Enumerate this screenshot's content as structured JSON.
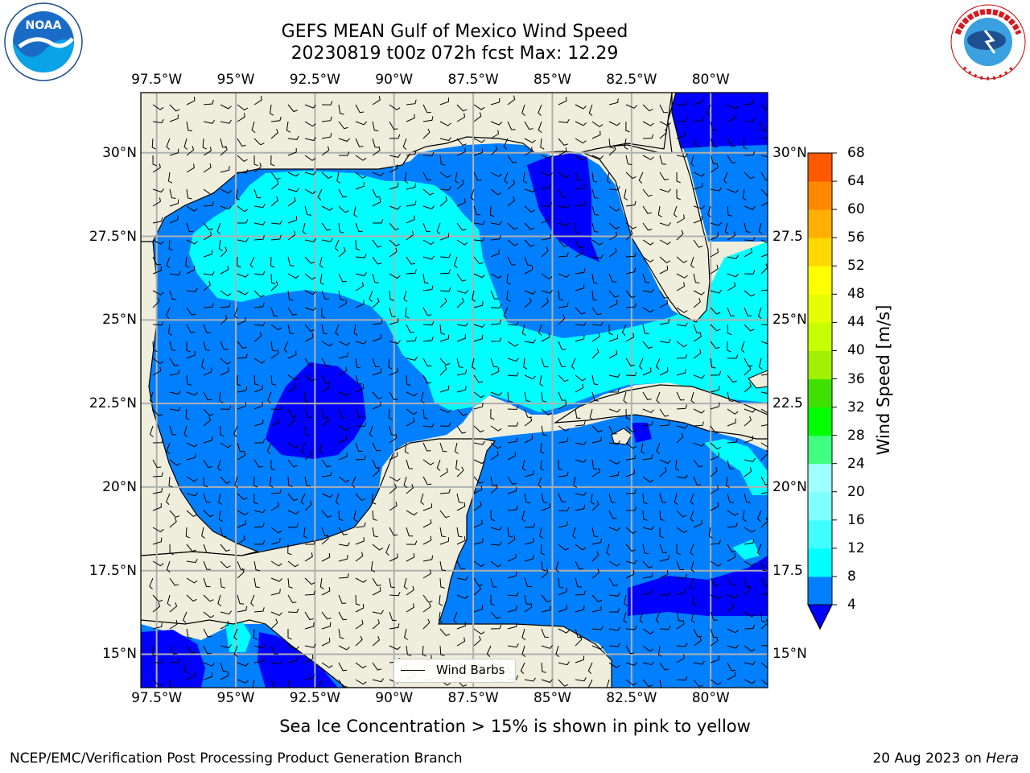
{
  "title": {
    "line1": "GEFS MEAN Gulf of Mexico Wind Speed",
    "line2": "20230819 t00z 072h fcst   Max: 12.29"
  },
  "map": {
    "lon_labels": [
      "97.5°W",
      "95°W",
      "92.5°W",
      "90°W",
      "87.5°W",
      "85°W",
      "82.5°W",
      "80°W"
    ],
    "lon_values": [
      -97.5,
      -95,
      -92.5,
      -90,
      -87.5,
      -85,
      -82.5,
      -80
    ],
    "lat_labels_left": [
      "30°N",
      "27.5°N",
      "25°N",
      "22.5°N",
      "20°N",
      "17.5°N",
      "15°N"
    ],
    "lat_labels_right": [
      "30°N",
      "27.5",
      "25°N",
      "22.5",
      "20°N",
      "17.5",
      "15°N"
    ],
    "lat_values": [
      30,
      27.5,
      25,
      22.5,
      20,
      17.5,
      15
    ],
    "extent": {
      "lon_min": -98,
      "lon_max": -78.2,
      "lat_min": 14.0,
      "lat_max": 31.8
    },
    "colors": {
      "land": "#efeedc",
      "ocean_4_8": "#0080ff",
      "ocean_8_12": "#00ffff",
      "ocean_below_4": "#0000ff",
      "grid": "#b0b0b0",
      "coast": "#000000"
    }
  },
  "legend": {
    "label": "Wind Barbs"
  },
  "colorbar": {
    "title": "Wind Speed [m/s]",
    "levels": [
      "4",
      "8",
      "12",
      "16",
      "20",
      "24",
      "28",
      "32",
      "36",
      "40",
      "44",
      "48",
      "52",
      "56",
      "60",
      "64",
      "68"
    ],
    "colors": [
      "#0080ff",
      "#00ffff",
      "#40ffff",
      "#80ffff",
      "#a0ffff",
      "#40ff80",
      "#00ff00",
      "#40e000",
      "#a0f000",
      "#c8ff00",
      "#e6ff00",
      "#ffff00",
      "#ffd800",
      "#ffb000",
      "#ff8800",
      "#ff5a00",
      "#ff2a00",
      "#ff0000"
    ],
    "under_color": "#0000ff"
  },
  "note": "Sea Ice Concentration > 15% is shown in pink to yellow",
  "footer": {
    "left": "NCEP/EMC/Verification Post Processing Product Generation Branch",
    "right_date": "20 Aug 2023 on ",
    "right_machine": "Hera"
  }
}
